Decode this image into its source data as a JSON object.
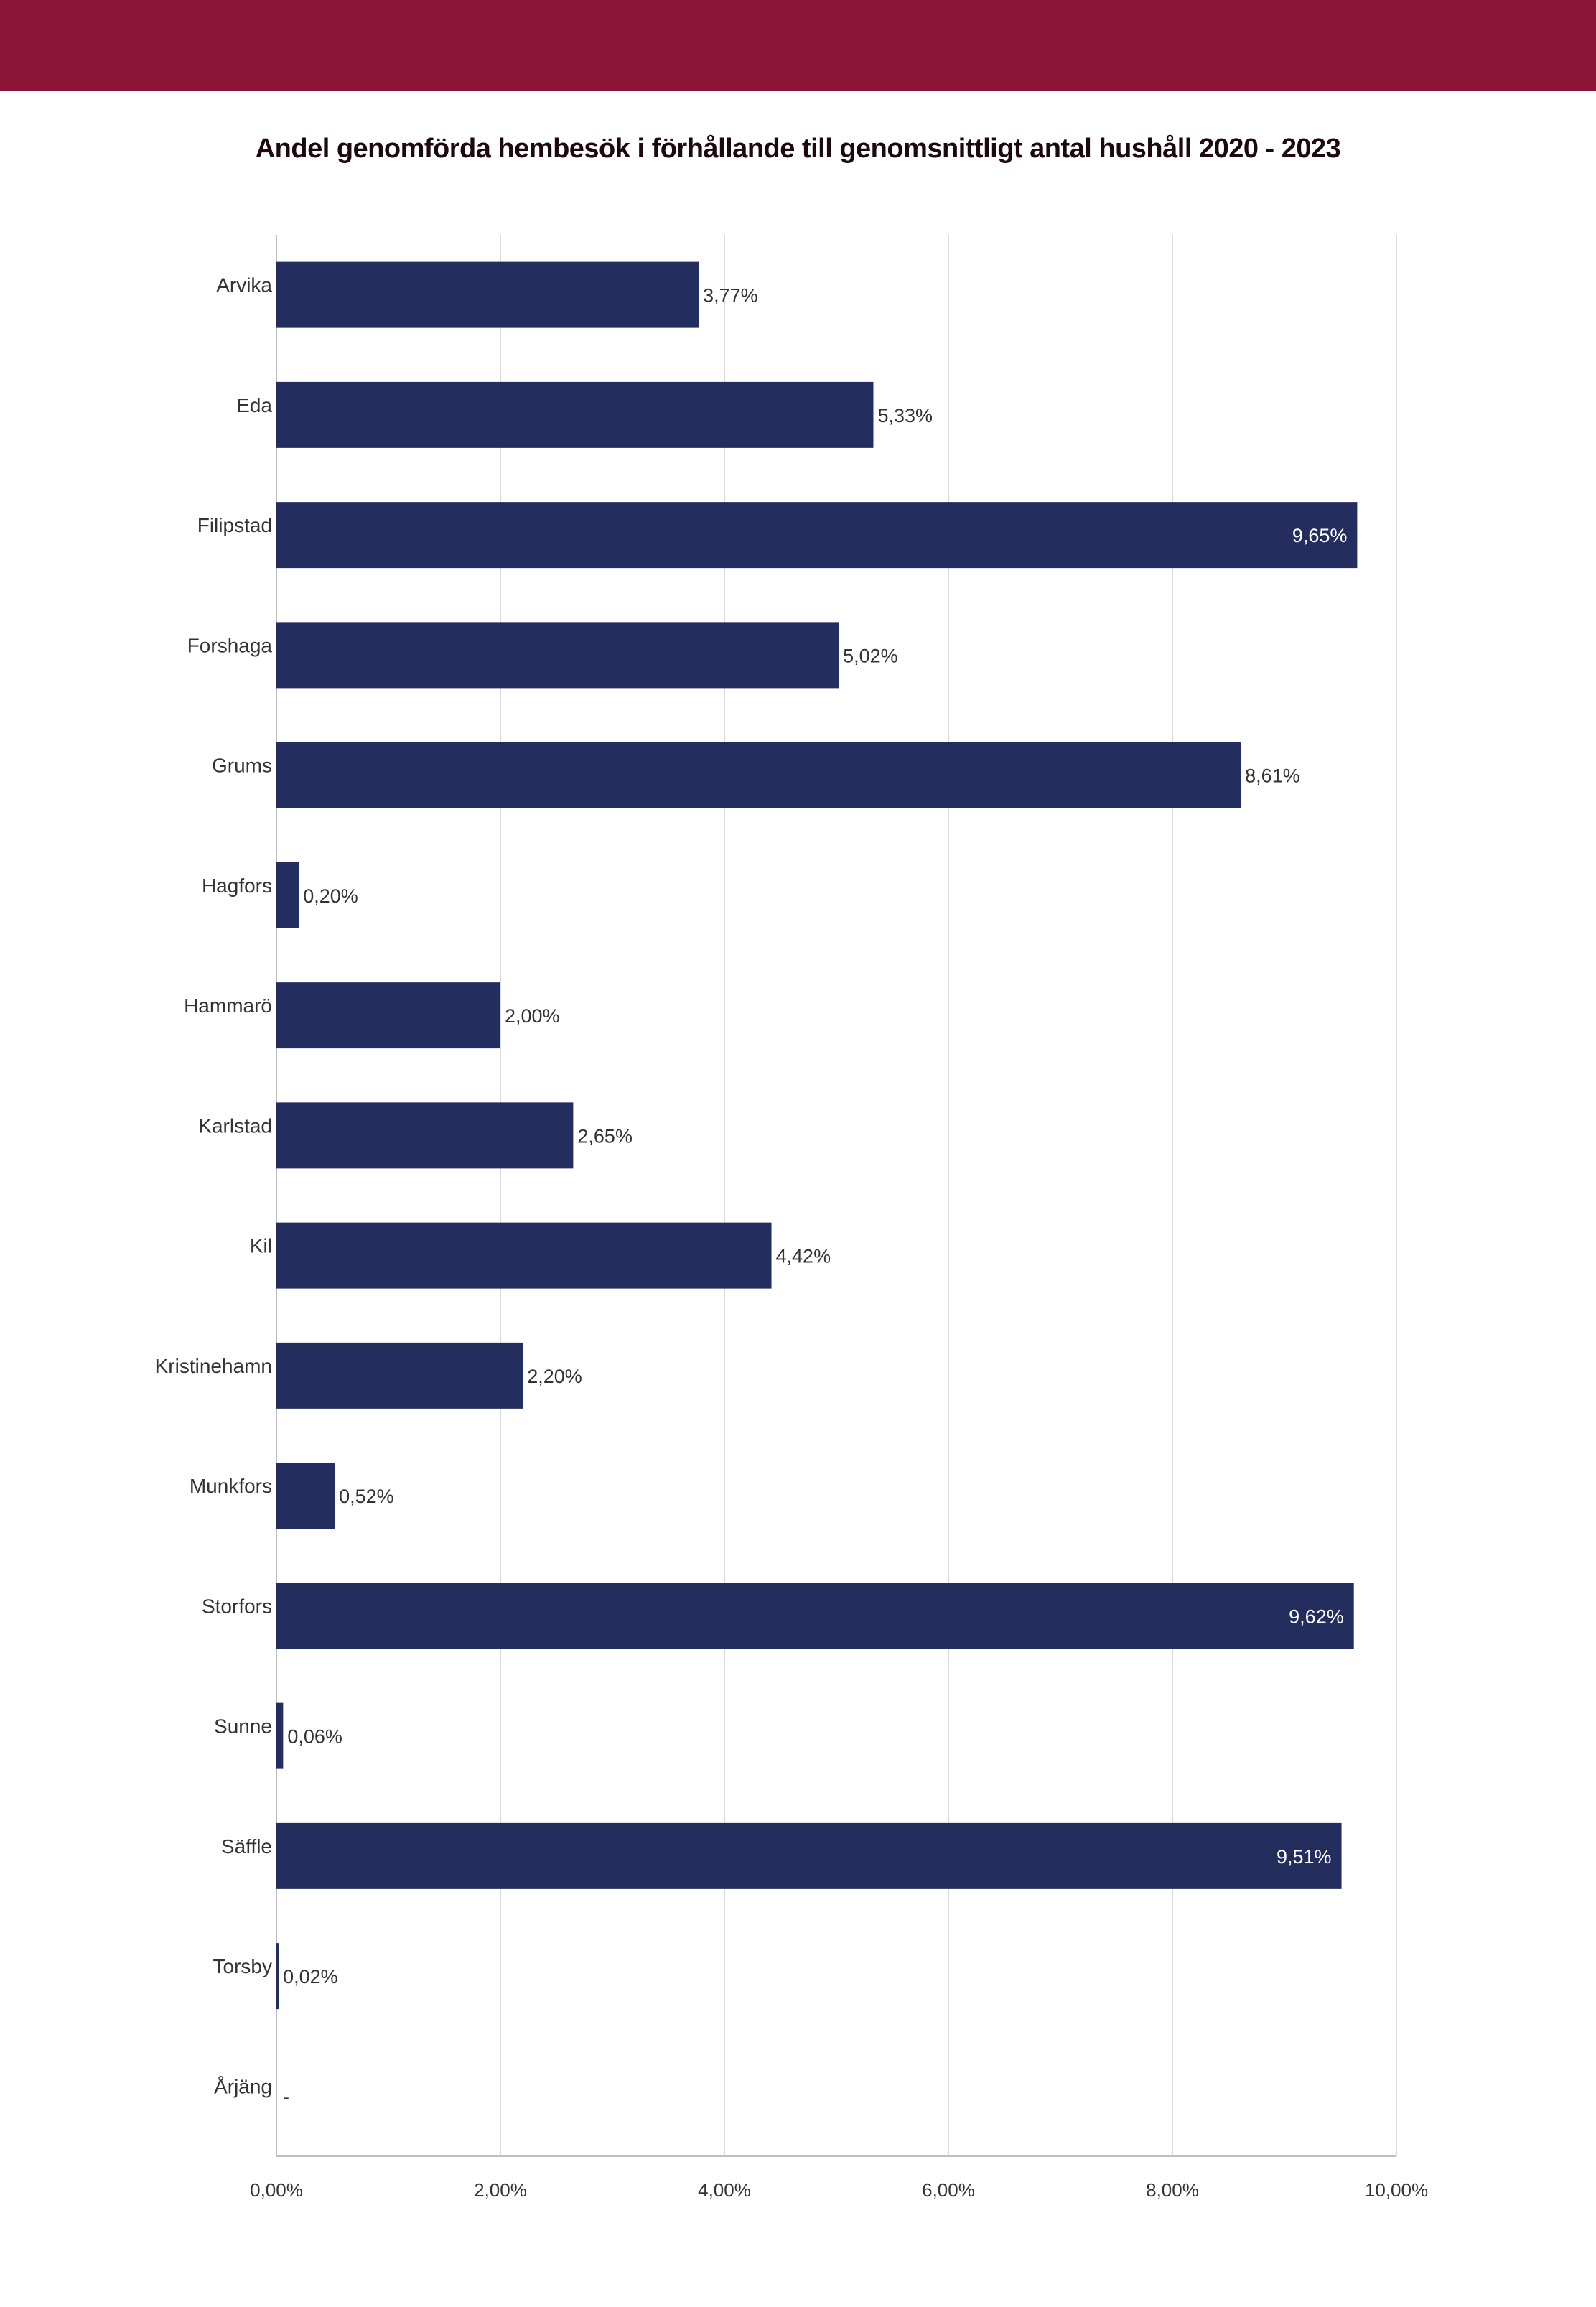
{
  "colors": {
    "banner": "#8b1538",
    "bar": "#242e5e",
    "grid": "#d9d9d9",
    "axis": "#bfbfbf"
  },
  "chart_data": {
    "type": "bar",
    "orientation": "horizontal",
    "title": "Andel genomförda hembesök i förhållande till genomsnittligt antal hushåll 2020 - 2023",
    "categories": [
      "Arvika",
      "Eda",
      "Filipstad",
      "Forshaga",
      "Grums",
      "Hagfors",
      "Hammarö",
      "Karlstad",
      "Kil",
      "Kristinehamn",
      "Munkfors",
      "Storfors",
      "Sunne",
      "Säffle",
      "Torsby",
      "Årjäng"
    ],
    "values": [
      3.77,
      5.33,
      9.65,
      5.02,
      8.61,
      0.2,
      2.0,
      2.65,
      4.42,
      2.2,
      0.52,
      9.62,
      0.06,
      9.51,
      0.02,
      0
    ],
    "data_labels": [
      "3,77%",
      "5,33%",
      "9,65%",
      "5,02%",
      "8,61%",
      "0,20%",
      "2,00%",
      "2,65%",
      "4,42%",
      "2,20%",
      "0,52%",
      "9,62%",
      "0,06%",
      "9,51%",
      "0,02%",
      "-"
    ],
    "x_ticks": [
      0,
      2,
      4,
      6,
      8,
      10
    ],
    "x_tick_labels": [
      "0,00%",
      "2,00%",
      "4,00%",
      "6,00%",
      "8,00%",
      "10,00%"
    ],
    "xlim": [
      0,
      10
    ],
    "xlabel": "",
    "ylabel": "",
    "grid": true,
    "legend": "none"
  }
}
